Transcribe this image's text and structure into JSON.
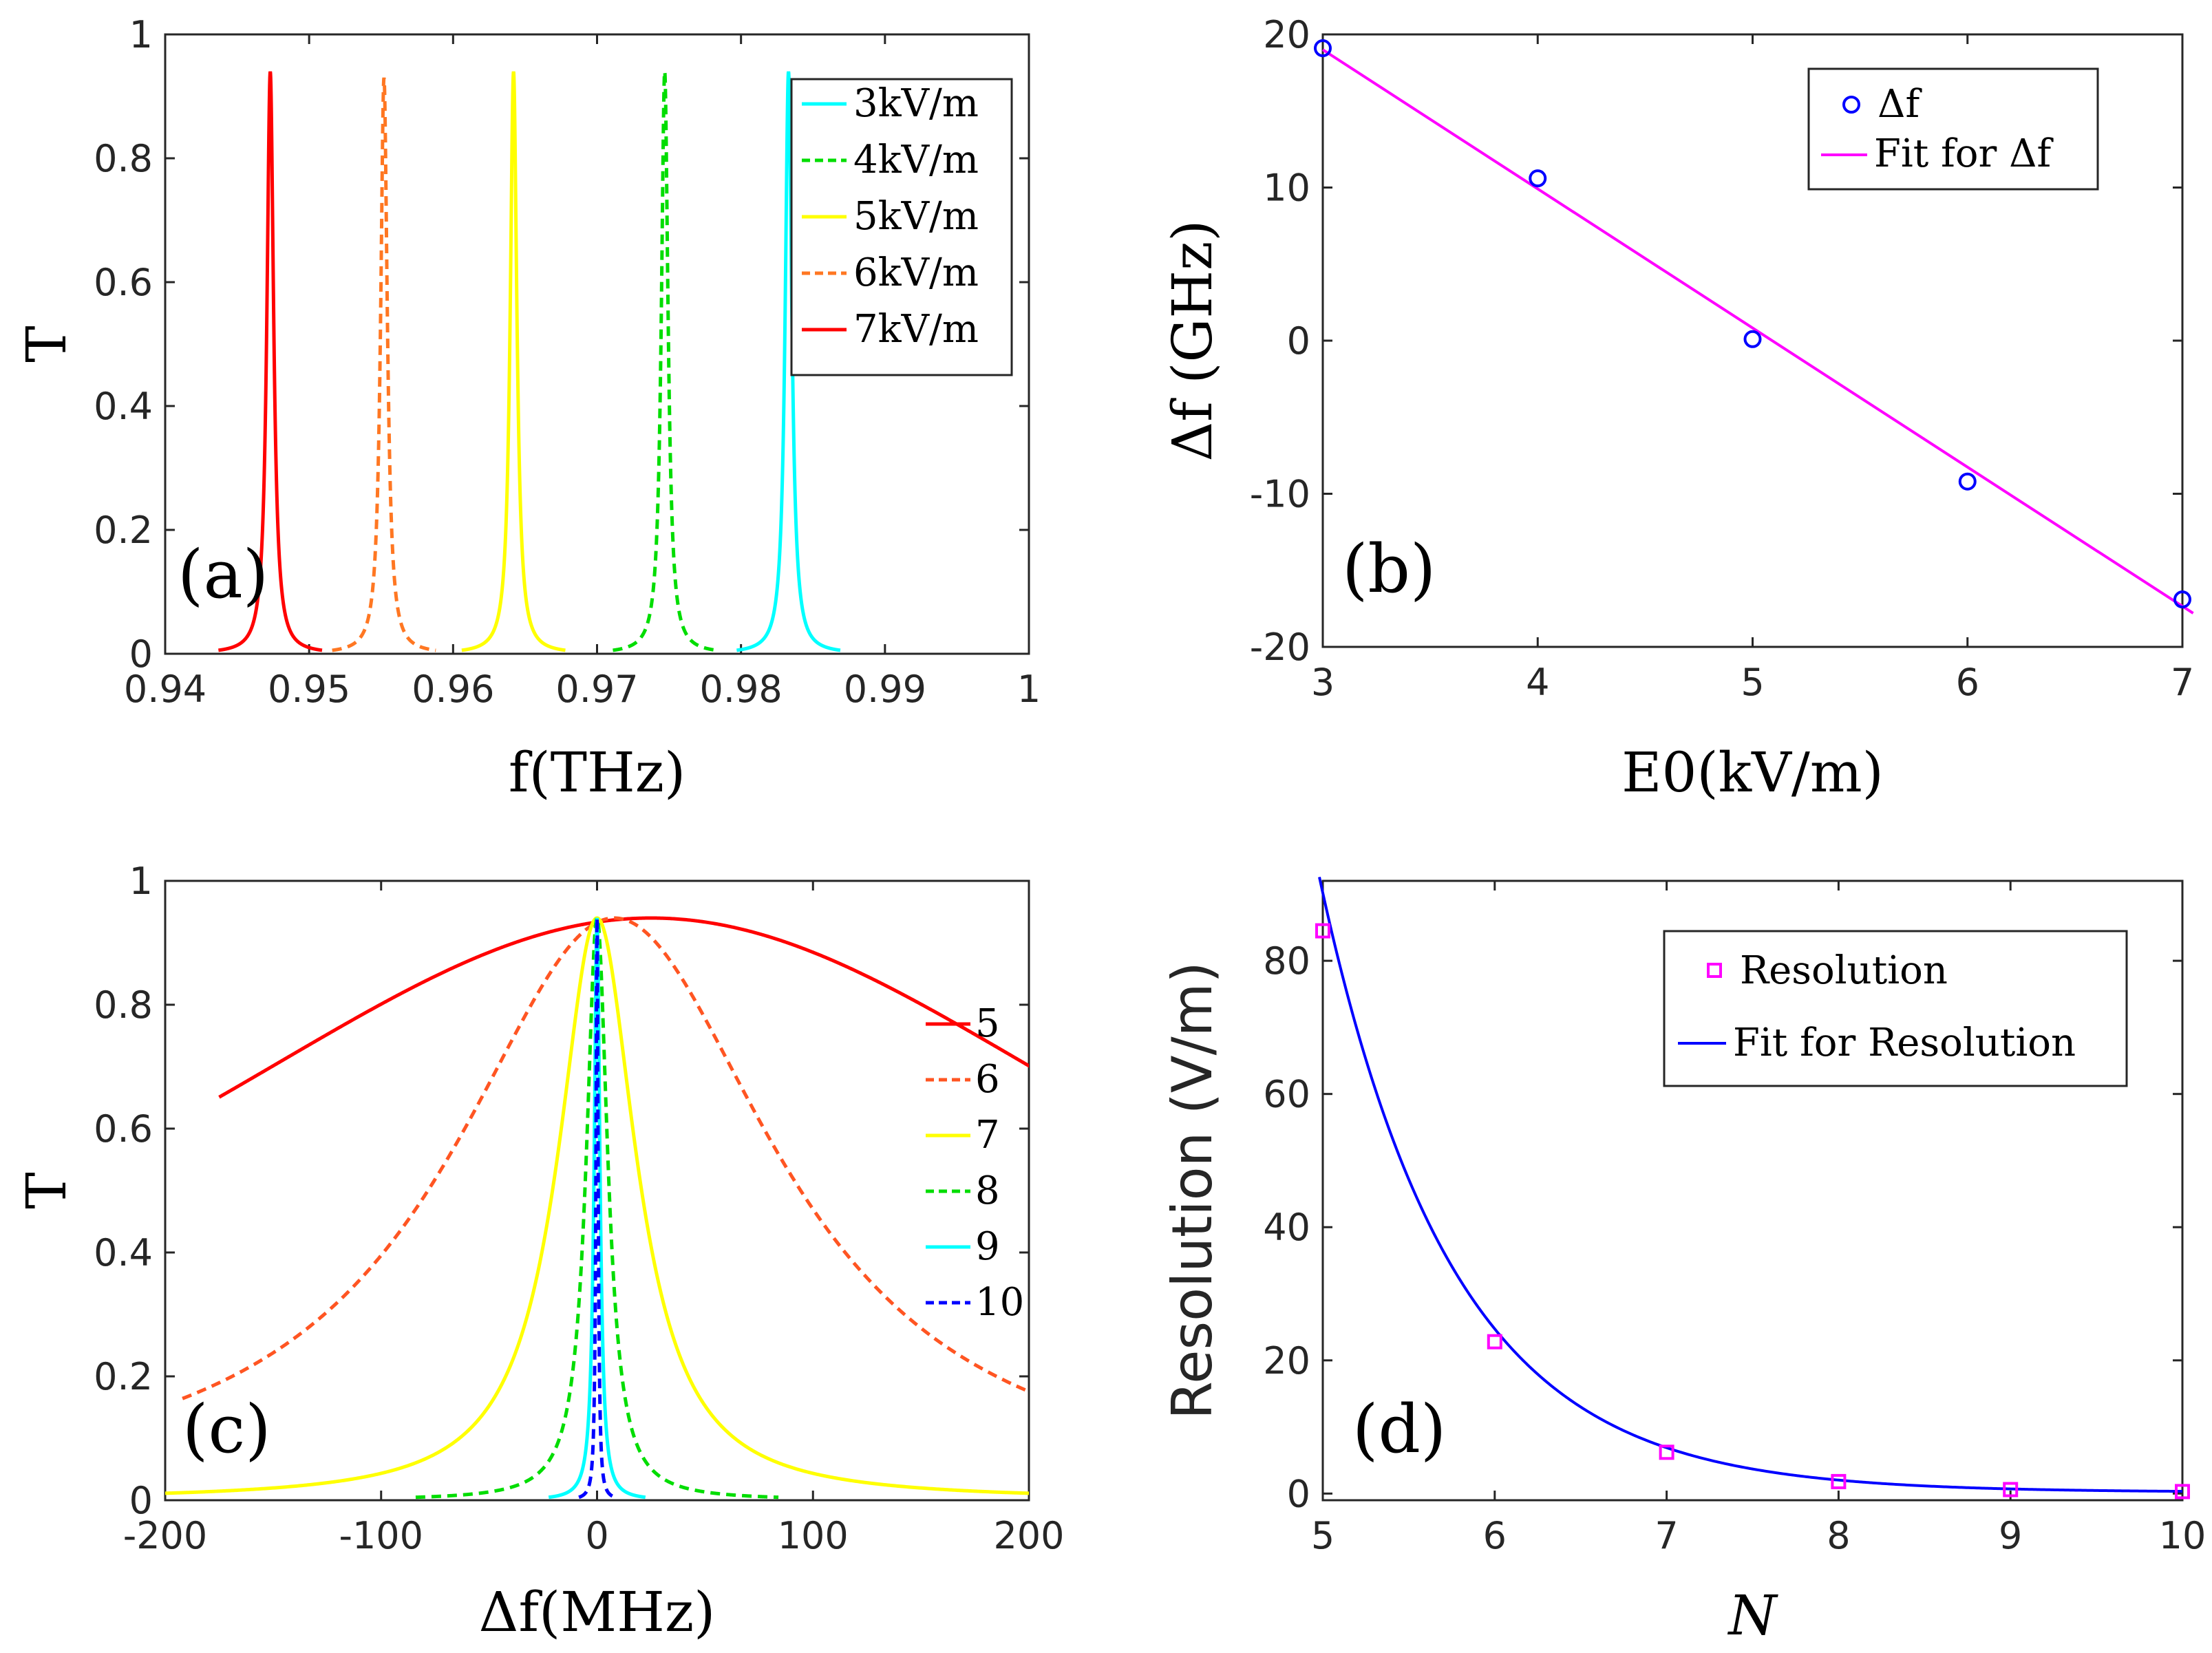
{
  "chart_data": [
    {
      "id": "a",
      "type": "line",
      "panel_label": "(a)",
      "xlabel": "f(THz)",
      "ylabel": "T",
      "xlim": [
        0.94,
        1.0
      ],
      "ylim": [
        0,
        1
      ],
      "xticks": [
        "0.94",
        "0.95",
        "0.96",
        "0.97",
        "0.98",
        "0.99",
        "1"
      ],
      "yticks": [
        "0",
        "0.2",
        "0.4",
        "0.6",
        "0.8",
        "1"
      ],
      "legend_position": "top-right",
      "series": [
        {
          "name": "3kV/m",
          "color": "#00ffff",
          "dash": false,
          "peak_f": 0.9833,
          "peak_T": 0.94,
          "halfwidth": 0.00028
        },
        {
          "name": "4kV/m",
          "color": "#00dd00",
          "dash": true,
          "peak_f": 0.9747,
          "peak_T": 0.94,
          "halfwidth": 0.00028
        },
        {
          "name": "5kV/m",
          "color": "#ffff00",
          "dash": false,
          "peak_f": 0.9642,
          "peak_T": 0.94,
          "halfwidth": 0.00028
        },
        {
          "name": "6kV/m",
          "color": "#ff7722",
          "dash": true,
          "peak_f": 0.9552,
          "peak_T": 0.93,
          "halfwidth": 0.00028
        },
        {
          "name": "7kV/m",
          "color": "#ff0000",
          "dash": false,
          "peak_f": 0.9473,
          "peak_T": 0.94,
          "halfwidth": 0.00028
        }
      ]
    },
    {
      "id": "b",
      "type": "scatter",
      "panel_label": "(b)",
      "xlabel": "E0(kV/m)",
      "ylabel": "Δf (GHz)",
      "xlim": [
        3,
        7
      ],
      "ylim": [
        -20,
        20
      ],
      "xticks": [
        "3",
        "4",
        "5",
        "6",
        "7"
      ],
      "yticks": [
        "-20",
        "-10",
        "0",
        "10",
        "20"
      ],
      "legend_position": "top-right",
      "points": {
        "name": "Δf",
        "color": "#0000ff",
        "x": [
          3,
          4,
          5,
          6,
          7
        ],
        "y": [
          19.1,
          10.6,
          0.1,
          -9.2,
          -16.9
        ]
      },
      "fit": {
        "name": "Fit for Δf",
        "color": "#ff00ff",
        "x": [
          3,
          7.05
        ],
        "y": [
          19.0,
          -17.8
        ]
      }
    },
    {
      "id": "c",
      "type": "line",
      "panel_label": "(c)",
      "xlabel": "Δf(MHz)",
      "ylabel": "T",
      "xlim": [
        -200,
        200
      ],
      "ylim": [
        0,
        1
      ],
      "xticks": [
        "-200",
        "-100",
        "0",
        "100",
        "200"
      ],
      "yticks": [
        "0",
        "0.2",
        "0.4",
        "0.6",
        "0.8",
        "1"
      ],
      "legend_position": "right",
      "series": [
        {
          "name": "5",
          "color": "#ff0000",
          "dash": false,
          "peak_T": 0.94,
          "center": 25,
          "halfwidth": 300
        },
        {
          "name": "6",
          "color": "#ff5522",
          "dash": true,
          "peak_T": 0.94,
          "center": 8,
          "halfwidth": 92
        },
        {
          "name": "7",
          "color": "#ffff00",
          "dash": false,
          "peak_T": 0.94,
          "center": 0,
          "halfwidth": 22
        },
        {
          "name": "8",
          "color": "#00dd00",
          "dash": true,
          "peak_T": 0.94,
          "center": 0,
          "halfwidth": 6
        },
        {
          "name": "9",
          "color": "#00ffff",
          "dash": false,
          "peak_T": 0.94,
          "center": 0,
          "halfwidth": 1.6
        },
        {
          "name": "10",
          "color": "#0000ff",
          "dash": true,
          "peak_T": 0.94,
          "center": 0,
          "halfwidth": 0.6
        }
      ]
    },
    {
      "id": "d",
      "type": "scatter",
      "panel_label": "(d)",
      "xlabel": "N",
      "ylabel": "Resolution (V/m)",
      "xlim": [
        5,
        10
      ],
      "ylim": [
        -1,
        92
      ],
      "xticks": [
        "5",
        "6",
        "7",
        "8",
        "9",
        "10"
      ],
      "yticks": [
        "0",
        "20",
        "40",
        "60",
        "80"
      ],
      "legend_position": "top-right",
      "points": {
        "name": "Resolution",
        "color": "#ff00ff",
        "x": [
          5,
          6,
          7,
          8,
          9,
          10
        ],
        "y": [
          84.5,
          22.8,
          6.2,
          1.8,
          0.6,
          0.3
        ]
      },
      "fit": {
        "name": "Fit for Resolution",
        "color": "#0000ff",
        "amplitude": 90,
        "decay": 1.3,
        "offset": 0.2
      }
    }
  ]
}
